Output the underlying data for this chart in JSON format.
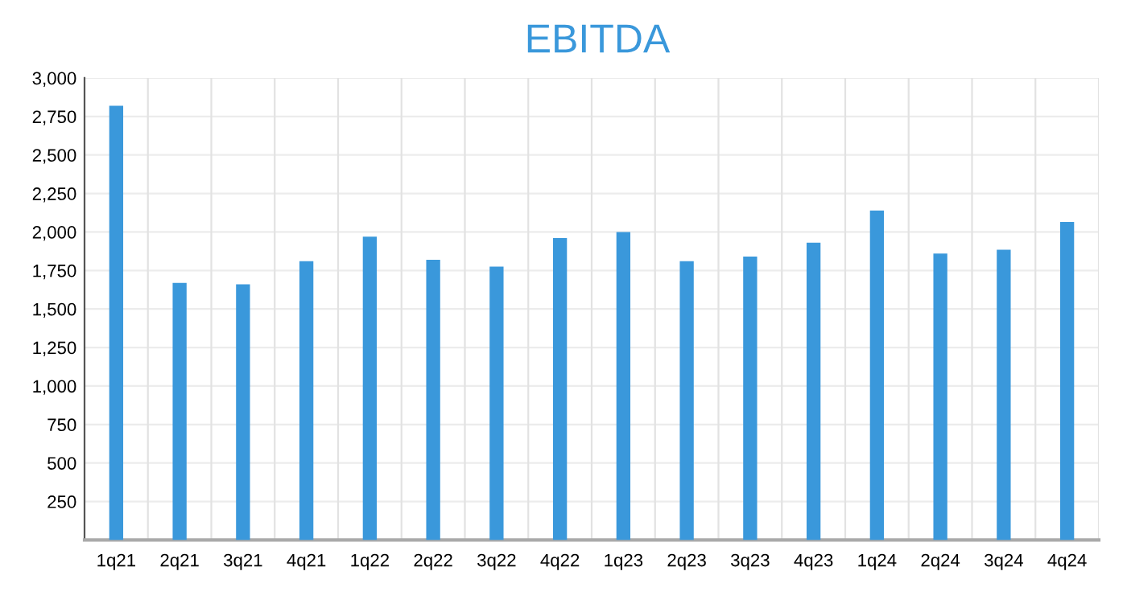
{
  "chart_data": {
    "type": "bar",
    "title": "EBITDA",
    "categories": [
      "1q21",
      "2q21",
      "3q21",
      "4q21",
      "1q22",
      "2q22",
      "3q22",
      "4q22",
      "1q23",
      "2q23",
      "3q23",
      "4q23",
      "1q24",
      "2q24",
      "3q24",
      "4q24"
    ],
    "values": [
      2820,
      1670,
      1660,
      1810,
      1970,
      1820,
      1775,
      1960,
      2000,
      1810,
      1840,
      1930,
      2140,
      1860,
      1885,
      2065
    ],
    "color": "#3a98db",
    "ylim": [
      0,
      3000
    ],
    "yticks": [
      {
        "value": 0,
        "label": null
      },
      250,
      500,
      750,
      {
        "value": 1000,
        "label": "1,000"
      },
      {
        "value": 1250,
        "label": "1,250"
      },
      {
        "value": 1500,
        "label": "1,500"
      },
      {
        "value": 1750,
        "label": "1,750"
      },
      {
        "value": 2000,
        "label": "2,000"
      },
      {
        "value": 2250,
        "label": "2,250"
      },
      {
        "value": 2500,
        "label": "2,500"
      },
      {
        "value": 2750,
        "label": "2,750"
      },
      {
        "value": 3000,
        "label": "3,000"
      }
    ],
    "grid": true
  }
}
